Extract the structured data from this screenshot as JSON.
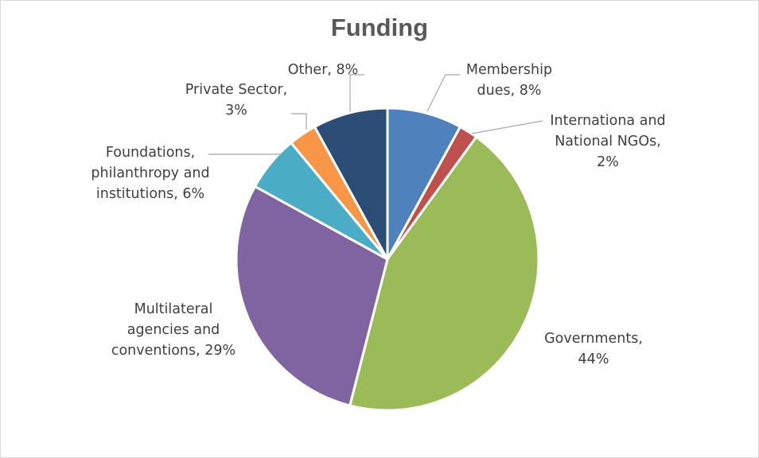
{
  "chart_data": {
    "type": "pie",
    "title": "Funding",
    "slices": [
      {
        "name": "Membership dues",
        "value": 8,
        "color": "#4f81bd",
        "label_lines": [
          "Membership",
          "dues, 8%"
        ]
      },
      {
        "name": "Internationa and National NGOs",
        "value": 2,
        "color": "#c0504d",
        "label_lines": [
          "Internationa and",
          "National NGOs,",
          "2%"
        ]
      },
      {
        "name": "Governments",
        "value": 44,
        "color": "#9bbb59",
        "label_lines": [
          "Governments,",
          "44%"
        ]
      },
      {
        "name": "Multilateral agencies and conventions",
        "value": 29,
        "color": "#8064a2",
        "label_lines": [
          "Multilateral",
          "agencies and",
          "conventions, 29%"
        ]
      },
      {
        "name": "Foundations, philanthropy and institutions",
        "value": 6,
        "color": "#4bacc6",
        "label_lines": [
          "Foundations,",
          "philanthropy and",
          "institutions, 6%"
        ]
      },
      {
        "name": "Private Sector",
        "value": 3,
        "color": "#f79646",
        "label_lines": [
          "Private Sector,",
          "3%"
        ]
      },
      {
        "name": "Other",
        "value": 8,
        "color": "#2c4d75",
        "label_lines": [
          "Other, 8%"
        ]
      }
    ]
  }
}
